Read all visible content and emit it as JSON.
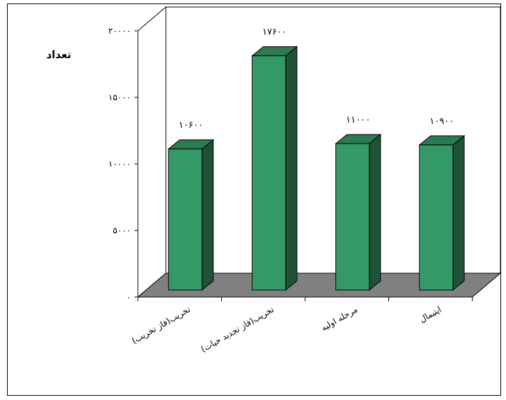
{
  "chart_data": {
    "type": "bar",
    "ylabel": "تعداد",
    "ylim": [
      0,
      20000
    ],
    "y_ticks": [
      0,
      5000,
      10000,
      15000,
      20000
    ],
    "y_tick_labels": [
      "۰",
      "۵۰۰۰",
      "۱۰۰۰۰",
      "۱۵۰۰۰",
      "۲۰۰۰۰"
    ],
    "categories": [
      "تخریب(فاز تخریب)",
      "تخریب(فاز تجدید حیات)",
      "مرحله اولیه",
      "اپتیمال"
    ],
    "values": [
      10600,
      17600,
      11000,
      10900
    ],
    "data_labels": [
      "۱۰۶۰۰",
      "۱۷۶۰۰",
      "۱۱۰۰۰",
      "۱۰۹۰۰"
    ],
    "grid": false,
    "legend": "none",
    "style": "3d-column",
    "colors": {
      "bar_front": "#339966",
      "bar_top": "#2a7a52",
      "bar_side": "#1f5236",
      "floor": "#808080",
      "edge": "#000000"
    }
  }
}
